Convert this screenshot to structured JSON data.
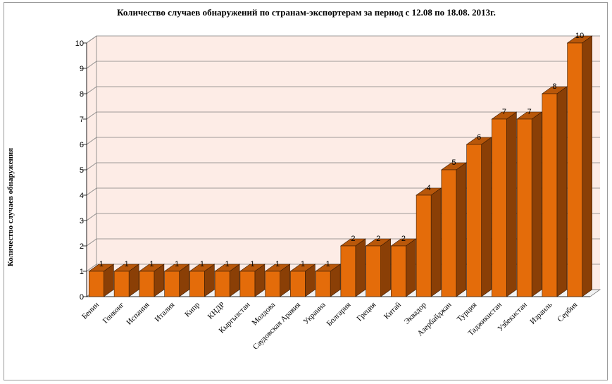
{
  "chart_data": {
    "type": "bar",
    "title": "Количество случаев обнаружений по странам-экспортерам за период с 12.08 по 18.08. 2013г.",
    "xlabel": "",
    "ylabel": "Количество случаев обнаружения",
    "ylim": [
      0,
      10
    ],
    "yticks": [
      "0",
      "1",
      "2",
      "3",
      "4",
      "5",
      "6",
      "7",
      "8",
      "9",
      "10"
    ],
    "grid": true,
    "legend": "none",
    "categories": [
      "Бенин",
      "Гонконг",
      "Испания",
      "Италия",
      "Кипр",
      "КНДР",
      "Кыргызстан",
      "Молдова",
      "Саудовская Аравия",
      "Украина",
      "Болгария",
      "Греция",
      "Китай",
      "Эквадор",
      "Азербайджан",
      "Турция",
      "Таджикистан",
      "Узбекистан",
      "Израиль",
      "Сербия"
    ],
    "values": [
      1,
      1,
      1,
      1,
      1,
      1,
      1,
      1,
      1,
      1,
      2,
      2,
      2,
      4,
      5,
      6,
      7,
      7,
      8,
      10
    ],
    "data_labels": [
      "1",
      "1",
      "1",
      "1",
      "1",
      "1",
      "1",
      "1",
      "1",
      "1",
      "2",
      "2",
      "2",
      "4",
      "5",
      "6",
      "7",
      "7",
      "8",
      "10"
    ],
    "colors": {
      "bar_front": "#e46c0a",
      "bar_side": "#8a3f06",
      "bar_top": "#b8570a",
      "bar_outline": "#3a1a02",
      "wall": "#fdece6",
      "floor": "#f2f2f2",
      "gridline": "#7f7f7f"
    }
  }
}
